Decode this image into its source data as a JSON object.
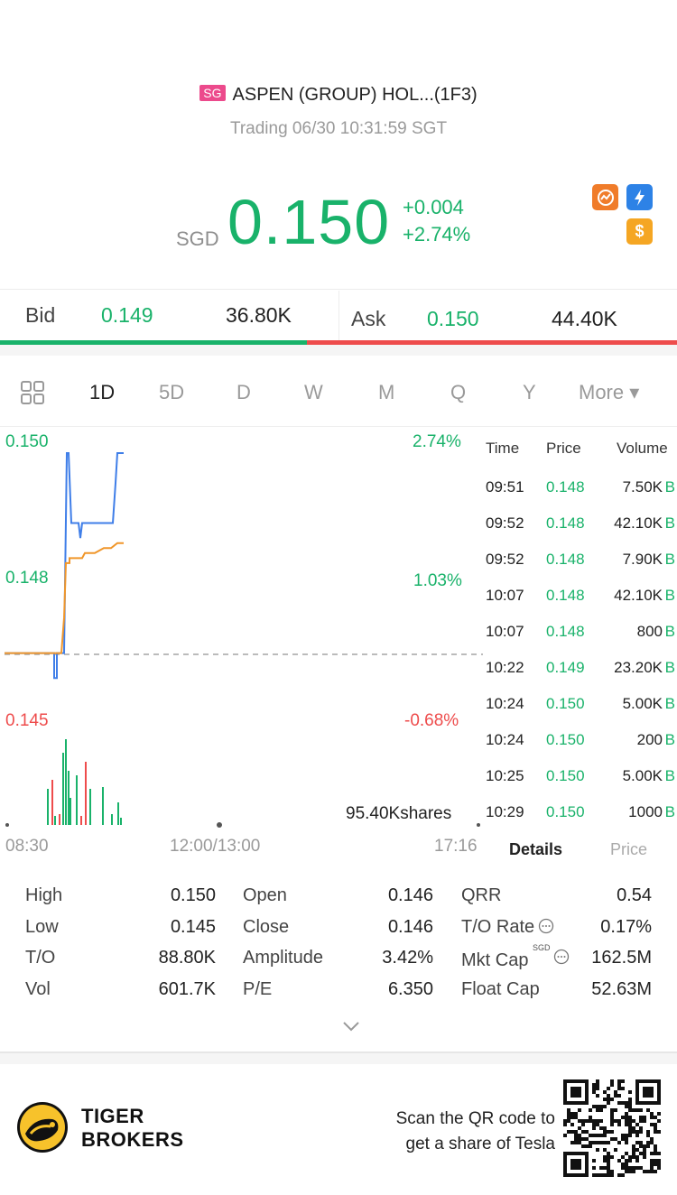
{
  "header": {
    "market_badge": "SG",
    "title": "ASPEN (GROUP) HOL...(1F3)",
    "status": "Trading 06/30 10:31:59 SGT"
  },
  "quote": {
    "currency": "SGD",
    "price": "0.150",
    "change": "+0.004",
    "change_pct": "+2.74%",
    "up_color": "#19b26a",
    "down_color": "#ee4c4c"
  },
  "icons": [
    "chart-icon",
    "flash-icon",
    "dollar-icon"
  ],
  "bid_ask": {
    "bid_label": "Bid",
    "bid_price": "0.149",
    "bid_size": "36.80K",
    "ask_label": "Ask",
    "ask_price": "0.150",
    "ask_size": "44.40K",
    "bid_share": 0.453
  },
  "tabs": [
    "1D",
    "5D",
    "D",
    "W",
    "M",
    "Q",
    "Y",
    "More ▾"
  ],
  "active_tab": "1D",
  "chart_data": {
    "type": "line",
    "y_labels": {
      "high": "0.150",
      "mid": "0.148",
      "low": "0.145"
    },
    "pct_labels": {
      "high": "2.74%",
      "mid": "1.03%",
      "low": "-0.68%"
    },
    "time_labels": [
      "08:30",
      "12:00/13:00",
      "17:16"
    ],
    "volume_label": "95.40Kshares",
    "ylim": [
      0.145,
      0.15
    ],
    "prev_close": 0.146,
    "series": [
      {
        "color": "#3f7ee8",
        "points": [
          [
            0,
            0.146
          ],
          [
            55,
            0.146
          ],
          [
            55,
            0.1455
          ],
          [
            58,
            0.1455
          ],
          [
            58,
            0.146
          ],
          [
            66,
            0.146
          ],
          [
            69,
            0.15
          ],
          [
            71,
            0.15
          ],
          [
            74,
            0.1486
          ],
          [
            82,
            0.1486
          ],
          [
            84,
            0.1483
          ],
          [
            86,
            0.1486
          ],
          [
            120,
            0.1486
          ],
          [
            123,
            0.1494
          ],
          [
            125,
            0.15
          ],
          [
            132,
            0.15
          ]
        ]
      },
      {
        "color": "#f0962a",
        "points": [
          [
            0,
            0.146
          ],
          [
            63,
            0.146
          ],
          [
            66,
            0.1467
          ],
          [
            68,
            0.1478
          ],
          [
            72,
            0.1478
          ],
          [
            72,
            0.1479
          ],
          [
            86,
            0.1479
          ],
          [
            89,
            0.148
          ],
          [
            100,
            0.148
          ],
          [
            110,
            0.1481
          ],
          [
            118,
            0.1481
          ],
          [
            125,
            0.1482
          ],
          [
            132,
            0.1482
          ]
        ]
      }
    ],
    "volume_bars": [
      {
        "x": 47,
        "h": 40,
        "c": "#19b26a"
      },
      {
        "x": 52,
        "h": 50,
        "c": "#ee4c4c"
      },
      {
        "x": 55,
        "h": 10,
        "c": "#19b26a"
      },
      {
        "x": 60,
        "h": 12,
        "c": "#ee4c4c"
      },
      {
        "x": 64,
        "h": 80,
        "c": "#19b26a"
      },
      {
        "x": 67,
        "h": 95,
        "c": "#19b26a"
      },
      {
        "x": 70,
        "h": 60,
        "c": "#19b26a"
      },
      {
        "x": 72,
        "h": 30,
        "c": "#19b26a"
      },
      {
        "x": 79,
        "h": 55,
        "c": "#19b26a"
      },
      {
        "x": 84,
        "h": 10,
        "c": "#ee4c4c"
      },
      {
        "x": 89,
        "h": 70,
        "c": "#ee4c4c"
      },
      {
        "x": 94,
        "h": 40,
        "c": "#19b26a"
      },
      {
        "x": 108,
        "h": 42,
        "c": "#19b26a"
      },
      {
        "x": 118,
        "h": 12,
        "c": "#19b26a"
      },
      {
        "x": 125,
        "h": 25,
        "c": "#19b26a"
      },
      {
        "x": 128,
        "h": 8,
        "c": "#19b26a"
      }
    ]
  },
  "trades": {
    "headers": [
      "Time",
      "Price",
      "Volume"
    ],
    "flag": "B",
    "rows": [
      {
        "time": "09:51",
        "price": "0.148",
        "vol": "7.50K"
      },
      {
        "time": "09:52",
        "price": "0.148",
        "vol": "42.10K"
      },
      {
        "time": "09:52",
        "price": "0.148",
        "vol": "7.90K"
      },
      {
        "time": "10:07",
        "price": "0.148",
        "vol": "42.10K"
      },
      {
        "time": "10:07",
        "price": "0.148",
        "vol": "800"
      },
      {
        "time": "10:22",
        "price": "0.149",
        "vol": "23.20K"
      },
      {
        "time": "10:24",
        "price": "0.150",
        "vol": "5.00K"
      },
      {
        "time": "10:24",
        "price": "0.150",
        "vol": "200"
      },
      {
        "time": "10:25",
        "price": "0.150",
        "vol": "5.00K"
      },
      {
        "time": "10:29",
        "price": "0.150",
        "vol": "1000"
      }
    ],
    "tab_details": "Details",
    "tab_price": "Price"
  },
  "stats": {
    "high_label": "High",
    "high": "0.150",
    "low_label": "Low",
    "low": "0.145",
    "to_label": "T/O",
    "to": "88.80K",
    "vol_label": "Vol",
    "vol": "601.7K",
    "open_label": "Open",
    "open": "0.146",
    "close_label": "Close",
    "close": "0.146",
    "amp_label": "Amplitude",
    "amp": "3.42%",
    "pe_label": "P/E",
    "pe": "6.350",
    "qrr_label": "QRR",
    "qrr": "0.54",
    "tor_label": "T/O Rate",
    "tor": "0.17%",
    "mkt_label": "Mkt Cap",
    "mkt_ccy": "SGD",
    "mkt": "162.5M",
    "float_label": "Float Cap",
    "float": "52.63M"
  },
  "footer": {
    "brand_line1": "TIGER",
    "brand_line2": "BROKERS",
    "qr_line1": "Scan the QR code to",
    "qr_line2": "get a share of Tesla"
  }
}
